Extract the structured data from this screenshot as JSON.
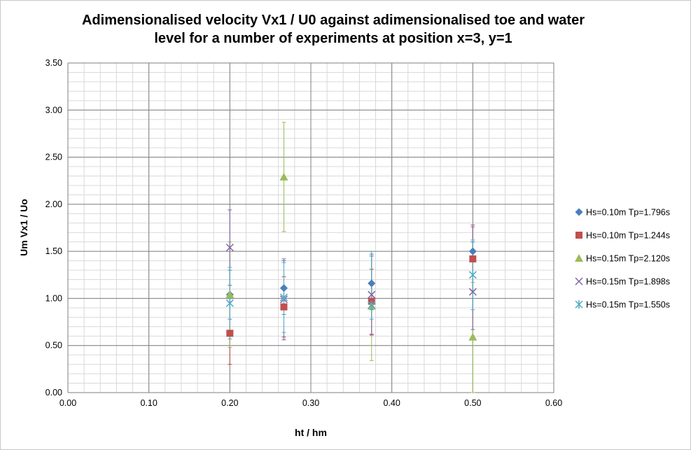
{
  "chart_data": {
    "type": "scatter",
    "title_line1": "Adimensionalised velocity Vx1 / U0 against adimensionalised toe and water",
    "title_line2": "level for a number of experiments at position x=3, y=1",
    "xlabel": "ht / hm",
    "ylabel": "Um Vx1 / Uo",
    "xlim": [
      0.0,
      0.6
    ],
    "ylim": [
      0.0,
      3.5
    ],
    "x_major_ticks": [
      "0.00",
      "0.10",
      "0.20",
      "0.30",
      "0.40",
      "0.50",
      "0.60"
    ],
    "y_major_ticks": [
      "0.00",
      "0.50",
      "1.00",
      "1.50",
      "2.00",
      "2.50",
      "3.00",
      "3.50"
    ],
    "x_major_values": [
      0.0,
      0.1,
      0.2,
      0.3,
      0.4,
      0.5,
      0.6
    ],
    "y_major_values": [
      0.0,
      0.5,
      1.0,
      1.5,
      2.0,
      2.5,
      3.0,
      3.5
    ],
    "x_minor_step": 0.02,
    "y_minor_step": 0.1,
    "grid": true,
    "legend_position": "right",
    "series": [
      {
        "name": "Hs=0.10m Tp=1.796s",
        "marker": "diamond",
        "color": "#4a7ebb",
        "points": [
          {
            "x": 0.2,
            "y": 1.04,
            "lo": 0.78,
            "hi": 1.3
          },
          {
            "x": 0.2667,
            "y": 1.11,
            "lo": 0.83,
            "hi": 1.4
          },
          {
            "x": 0.375,
            "y": 1.16,
            "lo": 0.88,
            "hi": 1.45
          },
          {
            "x": 0.5,
            "y": 1.5,
            "lo": 1.4,
            "hi": 1.6
          }
        ]
      },
      {
        "name": "Hs=0.10m Tp=1.244s",
        "marker": "square",
        "color": "#c0504d",
        "points": [
          {
            "x": 0.2,
            "y": 0.63,
            "lo": 0.3,
            "hi": 0.96
          },
          {
            "x": 0.2667,
            "y": 0.91,
            "lo": 0.59,
            "hi": 1.23
          },
          {
            "x": 0.375,
            "y": 0.97,
            "lo": 0.62,
            "hi": 1.31
          },
          {
            "x": 0.5,
            "y": 1.42,
            "lo": 1.08,
            "hi": 1.76
          }
        ]
      },
      {
        "name": "Hs=0.15m Tp=2.120s",
        "marker": "triangle",
        "color": "#9bbb59",
        "points": [
          {
            "x": 0.2,
            "y": 1.04,
            "lo": 0.48,
            "hi": 1.6
          },
          {
            "x": 0.2667,
            "y": 2.29,
            "lo": 1.71,
            "hi": 2.87
          },
          {
            "x": 0.375,
            "y": 0.92,
            "lo": 0.34,
            "hi": 1.5
          },
          {
            "x": 0.5,
            "y": 0.59,
            "lo": 0.0,
            "hi": 1.17
          }
        ]
      },
      {
        "name": "Hs=0.15m Tp=1.898s",
        "marker": "x",
        "color": "#8064a2",
        "points": [
          {
            "x": 0.2,
            "y": 1.54,
            "lo": 1.14,
            "hi": 1.94
          },
          {
            "x": 0.2667,
            "y": 0.99,
            "lo": 0.56,
            "hi": 1.42
          },
          {
            "x": 0.375,
            "y": 1.04,
            "lo": 0.61,
            "hi": 1.47
          },
          {
            "x": 0.5,
            "y": 1.07,
            "lo": 0.67,
            "hi": 1.78
          }
        ]
      },
      {
        "name": "Hs=0.15m Tp=1.550s",
        "marker": "star",
        "color": "#4bacc6",
        "points": [
          {
            "x": 0.2,
            "y": 0.95,
            "lo": 0.57,
            "hi": 1.33
          },
          {
            "x": 0.2667,
            "y": 1.01,
            "lo": 0.64,
            "hi": 1.38
          },
          {
            "x": 0.375,
            "y": 0.93,
            "lo": 0.78,
            "hi": 1.5
          },
          {
            "x": 0.5,
            "y": 1.25,
            "lo": 0.88,
            "hi": 1.62
          }
        ]
      }
    ]
  }
}
